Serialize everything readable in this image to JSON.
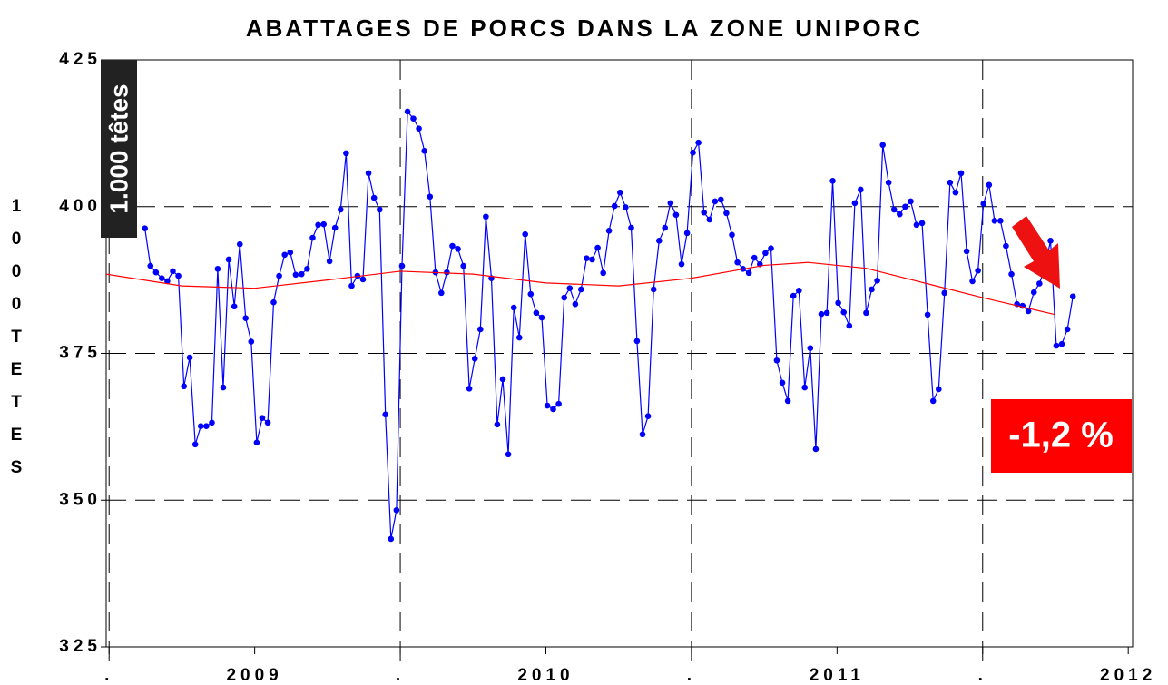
{
  "chart_data": {
    "type": "line",
    "title": "ABATTAGES DE PORCS DANS LA ZONE UNIPORC",
    "y_label": "1000 TETES",
    "annotations": [
      "1.000 têtes",
      "-1,2 %"
    ],
    "xlim": [
      2008.49,
      2012.015
    ],
    "xticks": [
      {
        "value": 2008.5,
        "label": "."
      },
      2009,
      {
        "value": 2009.5,
        "label": "."
      },
      2010,
      {
        "value": 2010.5,
        "label": "."
      },
      2011,
      {
        "value": 2011.5,
        "label": "."
      },
      2012
    ],
    "ylim": [
      325,
      425
    ],
    "yticks": [
      325,
      350,
      375,
      400,
      425
    ],
    "grid": true,
    "series": [
      {
        "color": "#0000ff",
        "marker": true,
        "x": [
          2008.623,
          2008.642,
          2008.661,
          2008.681,
          2008.7,
          2008.719,
          2008.738,
          2008.757,
          2008.777,
          2008.796,
          2008.815,
          2008.834,
          2008.853,
          2008.873,
          2008.892,
          2008.911,
          2008.93,
          2008.949,
          2008.969,
          2008.988,
          2009.007,
          2009.026,
          2009.045,
          2009.065,
          2009.084,
          2009.103,
          2009.122,
          2009.141,
          2009.161,
          2009.18,
          2009.199,
          2009.218,
          2009.237,
          2009.257,
          2009.276,
          2009.295,
          2009.314,
          2009.333,
          2009.353,
          2009.372,
          2009.391,
          2009.41,
          2009.429,
          2009.449,
          2009.468,
          2009.487,
          2009.506,
          2009.525,
          2009.545,
          2009.564,
          2009.583,
          2009.602,
          2009.621,
          2009.641,
          2009.66,
          2009.679,
          2009.698,
          2009.717,
          2009.737,
          2009.756,
          2009.775,
          2009.794,
          2009.813,
          2009.833,
          2009.852,
          2009.871,
          2009.89,
          2009.909,
          2009.929,
          2009.948,
          2009.967,
          2009.986,
          2010.005,
          2010.025,
          2010.044,
          2010.063,
          2010.082,
          2010.101,
          2010.121,
          2010.14,
          2010.159,
          2010.178,
          2010.197,
          2010.217,
          2010.236,
          2010.255,
          2010.274,
          2010.293,
          2010.313,
          2010.332,
          2010.351,
          2010.37,
          2010.389,
          2010.409,
          2010.428,
          2010.447,
          2010.466,
          2010.485,
          2010.505,
          2010.524,
          2010.543,
          2010.562,
          2010.581,
          2010.601,
          2010.62,
          2010.639,
          2010.658,
          2010.677,
          2010.697,
          2010.716,
          2010.735,
          2010.754,
          2010.773,
          2010.793,
          2010.812,
          2010.831,
          2010.85,
          2010.869,
          2010.889,
          2010.908,
          2010.927,
          2010.946,
          2010.965,
          2010.985,
          2011.004,
          2011.023,
          2011.042,
          2011.061,
          2011.081,
          2011.1,
          2011.119,
          2011.138,
          2011.157,
          2011.177,
          2011.196,
          2011.215,
          2011.234,
          2011.253,
          2011.273,
          2011.292,
          2011.311,
          2011.33,
          2011.349,
          2011.369,
          2011.388,
          2011.407,
          2011.426,
          2011.445,
          2011.465,
          2011.484,
          2011.503,
          2011.522,
          2011.541,
          2011.561,
          2011.58,
          2011.599,
          2011.618,
          2011.637,
          2011.657,
          2011.676,
          2011.695,
          2011.714,
          2011.733,
          2011.753,
          2011.772,
          2011.791,
          2011.81
        ],
        "values": [
          396.3,
          389.9,
          388.8,
          387.8,
          387.3,
          389.0,
          388.2,
          369.4,
          374.3,
          359.5,
          362.6,
          362.6,
          363.2,
          389.4,
          369.2,
          391.0,
          383.0,
          393.6,
          381.0,
          377.0,
          359.8,
          364.0,
          363.2,
          383.7,
          388.2,
          391.8,
          392.2,
          388.4,
          388.5,
          389.4,
          394.7,
          396.9,
          397.0,
          390.7,
          396.4,
          399.5,
          409.1,
          386.5,
          388.2,
          387.6,
          405.7,
          401.5,
          399.5,
          364.6,
          343.4,
          348.3,
          389.9,
          416.2,
          415.0,
          413.3,
          409.5,
          401.7,
          388.8,
          385.3,
          388.8,
          393.3,
          392.8,
          389.9,
          369.0,
          374.1,
          379.1,
          398.3,
          387.8,
          362.9,
          370.6,
          357.8,
          382.8,
          377.7,
          395.3,
          385.1,
          381.9,
          381.1,
          366.1,
          365.5,
          366.4,
          384.5,
          386.1,
          383.4,
          385.9,
          391.2,
          391.0,
          393.0,
          388.7,
          395.9,
          400.1,
          402.4,
          399.9,
          396.4,
          377.1,
          361.2,
          364.3,
          385.9,
          394.2,
          396.4,
          400.6,
          398.6,
          390.2,
          395.5,
          409.2,
          410.9,
          399.0,
          397.8,
          400.9,
          401.2,
          398.9,
          395.2,
          390.5,
          389.4,
          388.7,
          391.3,
          390.2,
          392.1,
          392.9,
          373.8,
          370.0,
          366.9,
          384.8,
          385.7,
          369.2,
          375.9,
          358.7,
          381.7,
          381.9,
          404.4,
          383.6,
          382.0,
          379.7,
          400.6,
          402.9,
          381.9,
          385.9,
          387.4,
          410.5,
          404.1,
          399.5,
          398.7,
          400.0,
          400.9,
          396.9,
          397.2,
          381.6,
          366.9,
          368.9,
          385.3,
          404.1,
          402.4,
          405.7,
          392.4,
          387.3,
          389.1,
          400.5,
          403.7,
          397.6,
          397.6,
          393.3,
          388.5,
          383.4,
          383.1,
          382.2,
          385.4,
          386.9,
          389.6,
          394.2,
          376.3,
          376.6,
          379.1,
          384.7
        ]
      },
      {
        "color": "#ff0000",
        "marker": false,
        "x": [
          2008.49,
          2008.75,
          2009.0,
          2009.25,
          2009.5,
          2009.75,
          2010.0,
          2010.25,
          2010.5,
          2010.75,
          2010.9,
          2011.1,
          2011.3,
          2011.5,
          2011.75
        ],
        "values": [
          388.5,
          386.5,
          386.1,
          387.5,
          389.0,
          388.5,
          387.0,
          386.5,
          387.8,
          390.0,
          390.5,
          389.5,
          387.0,
          384.5,
          381.6
        ]
      }
    ]
  }
}
